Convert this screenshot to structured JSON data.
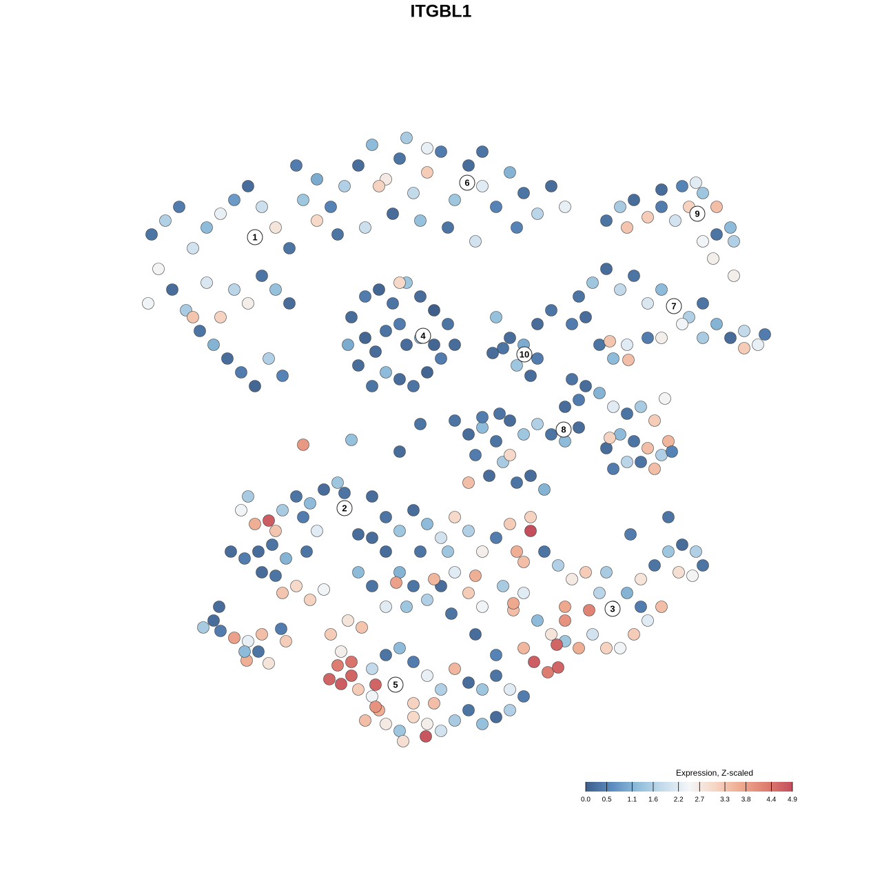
{
  "chart_data": {
    "type": "scatter",
    "title": "ITGBL1",
    "xlim": [
      0,
      1280
    ],
    "ylim": [
      1280,
      0
    ],
    "x": [
      220,
      240,
      260,
      280,
      300,
      320,
      340,
      360,
      380,
      400,
      420,
      440,
      460,
      230,
      250,
      270,
      290,
      310,
      330,
      350,
      370,
      320,
      340,
      360,
      380,
      400,
      420,
      300,
      280,
      215,
      390,
      410,
      480,
      500,
      520,
      540,
      560,
      580,
      600,
      620,
      640,
      660,
      680,
      700,
      720,
      740,
      760,
      780,
      800,
      820,
      460,
      490,
      530,
      570,
      610,
      650,
      690,
      550,
      430,
      590,
      620,
      700,
      750,
      510,
      530,
      550,
      570,
      590,
      610,
      630,
      650,
      660,
      640,
      620,
      600,
      580,
      560,
      540,
      520,
      505,
      530,
      560,
      590,
      610,
      580,
      545,
      630,
      580,
      880,
      900,
      920,
      940,
      960,
      980,
      1000,
      1020,
      1040,
      1060,
      1065,
      1040,
      1020,
      1010,
      990,
      960,
      910,
      1035,
      1065,
      840,
      860,
      880,
      900,
      920,
      940,
      960,
      980,
      1000,
      1020,
      1040,
      1060,
      1080,
      1100,
      1110,
      1080,
      990,
      1020,
      870,
      890,
      910,
      940,
      960,
      885,
      912,
      850,
      830,
      740,
      760,
      780,
      750,
      770,
      730,
      720,
      780,
      800,
      715,
      830,
      850,
      870,
      890,
      910,
      930,
      950,
      970,
      960,
      940,
      920,
      900,
      880,
      890,
      910,
      930,
      950,
      965,
      975,
      885,
      840,
      820,
      660,
      680,
      700,
      720,
      740,
      760,
      780,
      800,
      820,
      840,
      690,
      710,
      730,
      750,
      770,
      790,
      740,
      680,
      580,
      610,
      700,
      725,
      440,
      510,
      350,
      370,
      390,
      410,
      430,
      450,
      470,
      490,
      460,
      440,
      400,
      335,
      355,
      375,
      395,
      415,
      380,
      410,
      430,
      450,
      470,
      400,
      445,
      360,
      500,
      520,
      540,
      295,
      310,
      320,
      340,
      360,
      358,
      375,
      380,
      390,
      415,
      355,
      318,
      408,
      770,
      790,
      810,
      830,
      850,
      870,
      890,
      910,
      930,
      950,
      970,
      990,
      1010,
      1020,
      960,
      940,
      920,
      900,
      880,
      860,
      840,
      820,
      800,
      780,
      760,
      775,
      795,
      810,
      820,
      808,
      855,
      745,
      760,
      820,
      970,
      915,
      985,
      880,
      930,
      1005,
      480,
      495,
      490,
      478,
      495,
      510,
      520,
      540,
      550,
      530,
      545,
      560,
      580,
      600,
      620,
      618,
      640,
      660,
      680,
      700,
      720,
      740,
      760,
      540,
      560,
      580,
      600,
      620,
      640,
      660,
      680,
      700,
      720,
      740,
      630,
      600,
      585,
      545,
      510,
      525,
      505,
      720,
      690,
      560,
      580,
      600,
      620,
      640,
      660,
      680,
      700,
      720,
      740,
      750,
      560,
      580,
      600,
      620,
      640,
      660,
      680,
      700,
      730,
      520,
      540,
      560,
      575,
      630,
      690,
      760,
      590,
      655,
      745,
      770,
      540,
      610,
      650
    ],
    "y": [
      340,
      320,
      300,
      360,
      330,
      310,
      290,
      270,
      300,
      330,
      360,
      290,
      320,
      390,
      420,
      450,
      480,
      500,
      520,
      540,
      560,
      460,
      420,
      440,
      400,
      420,
      440,
      410,
      460,
      440,
      520,
      545,
      300,
      270,
      240,
      210,
      260,
      230,
      280,
      250,
      220,
      290,
      240,
      270,
      300,
      250,
      280,
      310,
      270,
      300,
      260,
      340,
      330,
      310,
      320,
      330,
      350,
      270,
      240,
      200,
      215,
      220,
      330,
      460,
      430,
      420,
      440,
      410,
      430,
      450,
      470,
      500,
      520,
      540,
      560,
      550,
      540,
      560,
      530,
      500,
      490,
      480,
      500,
      490,
      470,
      510,
      500,
      410,
      320,
      300,
      290,
      315,
      300,
      320,
      300,
      280,
      300,
      330,
      350,
      340,
      350,
      265,
      270,
      275,
      330,
      375,
      400,
      430,
      410,
      390,
      420,
      400,
      440,
      420,
      445,
      460,
      440,
      470,
      490,
      480,
      500,
      485,
      505,
      470,
      490,
      500,
      520,
      500,
      490,
      490,
      495,
      522,
      460,
      470,
      490,
      500,
      520,
      530,
      545,
      505,
      460,
      470,
      450,
      512,
      550,
      560,
      570,
      590,
      600,
      590,
      610,
      640,
      660,
      650,
      640,
      630,
      650,
      680,
      670,
      670,
      680,
      578,
      655,
      635,
      580,
      590,
      610,
      630,
      620,
      640,
      610,
      630,
      615,
      630,
      640,
      620,
      660,
      690,
      670,
      700,
      690,
      710,
      660,
      700,
      655,
      615,
      605,
      600,
      645,
      638,
      740,
      760,
      755,
      740,
      720,
      730,
      710,
      700,
      770,
      750,
      770,
      800,
      810,
      800,
      790,
      810,
      830,
      860,
      850,
      870,
      855,
      835,
      800,
      720,
      715,
      775,
      720,
      910,
      900,
      915,
      925,
      930,
      958,
      945,
      920,
      962,
      930,
      945,
      880,
      912,
      770,
      800,
      820,
      840,
      830,
      860,
      880,
      860,
      840,
      820,
      800,
      790,
      800,
      820,
      880,
      900,
      920,
      940,
      940,
      920,
      940,
      930,
      920,
      900,
      940,
      960,
      975,
      968,
      900,
      935,
      885,
      885,
      860,
      880,
      750,
      775,
      830,
      830,
      880,
      835,
      920,
      945,
      965,
      985,
      992,
      980,
      1000,
      1010,
      1030,
      1045,
      1025,
      1050,
      1060,
      1040,
      1050,
      1068,
      1060,
      1045,
      1030,
      1050,
      1040,
      1030,
      1010,
      970,
      950,
      940,
      960,
      980,
      1000,
      970,
      990,
      1000,
      980,
      1000,
      1020,
      1020,
      1075,
      993,
      960,
      910,
      900,
      950,
      920,
      750,
      770,
      740,
      760,
      780,
      750,
      770,
      800,
      780,
      760,
      800,
      800,
      830,
      850,
      870,
      850,
      830,
      860,
      880,
      850,
      830,
      850,
      880,
      845,
      840,
      835,
      815,
      880,
      890,
      875,
      750,
      780,
      800,
      800
    ],
    "values": [
      0.3,
      1.6,
      0.4,
      2.0,
      1.2,
      2.3,
      0.8,
      0.2,
      1.9,
      2.8,
      0.3,
      1.4,
      3.0,
      2.5,
      0.2,
      1.5,
      0.3,
      1.1,
      0.2,
      0.4,
      0.1,
      3.1,
      1.7,
      2.6,
      0.3,
      1.3,
      0.2,
      2.1,
      3.3,
      2.4,
      1.6,
      0.5,
      0.5,
      1.6,
      0.2,
      1.2,
      2.7,
      0.3,
      1.8,
      3.2,
      0.4,
      1.4,
      0.2,
      2.2,
      0.5,
      1.1,
      0.3,
      1.7,
      0.2,
      2.3,
      1.0,
      0.3,
      1.9,
      0.2,
      1.3,
      0.3,
      2.0,
      3.1,
      0.4,
      1.5,
      2.3,
      0.3,
      0.5,
      0.2,
      0.4,
      0.1,
      0.3,
      1.4,
      0.2,
      0.0,
      0.3,
      0.2,
      0.4,
      0.1,
      0.3,
      0.2,
      1.2,
      0.3,
      0.2,
      1.0,
      0.1,
      0.3,
      0.2,
      1.3,
      0.4,
      0.2,
      0.1,
      3.0,
      0.3,
      1.5,
      0.2,
      3.2,
      0.4,
      2.0,
      3.1,
      1.4,
      3.4,
      1.2,
      1.6,
      0.3,
      2.4,
      2.2,
      0.5,
      0.2,
      3.3,
      2.6,
      2.6,
      0.3,
      1.4,
      0.2,
      1.8,
      0.3,
      2.1,
      1.2,
      0.2,
      1.6,
      0.3,
      1.1,
      0.2,
      1.8,
      2.3,
      0.4,
      3.2,
      2.4,
      1.5,
      0.3,
      1.2,
      2.2,
      0.4,
      2.6,
      3.3,
      3.4,
      0.2,
      0.4,
      0.2,
      1.0,
      0.4,
      1.4,
      0.2,
      0.3,
      1.3,
      0.2,
      0.3,
      0.2,
      0.3,
      0.2,
      1.1,
      2.2,
      0.3,
      1.5,
      3.2,
      3.5,
      1.6,
      3.4,
      0.3,
      1.2,
      0.2,
      0.4,
      1.7,
      0.3,
      3.4,
      2.5,
      0.5,
      3.1,
      0.4,
      0.2,
      0.3,
      0.2,
      1.2,
      0.3,
      0.2,
      1.4,
      1.6,
      0.3,
      1.2,
      0.2,
      0.4,
      0.2,
      1.5,
      0.3,
      0.2,
      1.1,
      3.0,
      3.4,
      0.2,
      0.3,
      0.4,
      0.3,
      3.9,
      1.3,
      2.4,
      3.6,
      4.7,
      1.5,
      0.3,
      1.2,
      0.2,
      1.4,
      2.2,
      0.4,
      3.3,
      0.2,
      0.4,
      0.2,
      0.3,
      1.1,
      0.2,
      3.3,
      3.0,
      3.1,
      2.4,
      0.3,
      0.3,
      1.5,
      0.3,
      0.2,
      0.2,
      1.5,
      0.2,
      0.4,
      3.8,
      2.3,
      3.6,
      0.3,
      3.4,
      2.8,
      3.2,
      1.2,
      0.2,
      0.4,
      4.9,
      0.3,
      1.6,
      2.7,
      3.2,
      1.7,
      2.3,
      1.1,
      2.8,
      0.3,
      1.4,
      0.2,
      1.6,
      0.3,
      3.4,
      2.2,
      3.2,
      2.4,
      3.1,
      2.0,
      3.6,
      1.4,
      2.8,
      1.2,
      3.5,
      4.7,
      4.3,
      4.6,
      4.0,
      4.6,
      4.2,
      3.4,
      2.2,
      3.7,
      0.3,
      0.4,
      2.9,
      1.5,
      0.4,
      2.5,
      3.2,
      2.6,
      4.3,
      4.6,
      4.7,
      4.6,
      3.2,
      2.4,
      3.6,
      3.4,
      4.0,
      2.7,
      1.4,
      3.0,
      2.6,
      4.8,
      2.0,
      1.5,
      0.3,
      1.3,
      0.2,
      1.6,
      0.4,
      1.8,
      0.3,
      1.2,
      0.4,
      2.3,
      1.6,
      3.5,
      0.2,
      1.4,
      0.3,
      2.2,
      3.4,
      3.1,
      2.9,
      4.6,
      4.4,
      3.3,
      2.8,
      0.5,
      0.2,
      0.3,
      1.4,
      0.2,
      1.2,
      2.0,
      3.0,
      1.6,
      2.6,
      0.4,
      3.2,
      3.6,
      0.2,
      1.1,
      0.3,
      1.6,
      0.2,
      2.2,
      3.2,
      2.4,
      1.5,
      1.2,
      0.3,
      2.2,
      3.8,
      3.5,
      3.6,
      3.4,
      1.4,
      0.3,
      3.7,
      3.1,
      0.2,
      0.3,
      1.4
    ],
    "cluster_labels": {
      "labels": [
        "1",
        "2",
        "3",
        "4",
        "5",
        "6",
        "7",
        "8",
        "9",
        "10"
      ],
      "x": [
        370,
        500,
        889,
        614,
        574,
        678,
        978,
        818,
        1012,
        761
      ],
      "y": [
        344,
        737,
        883,
        487,
        993,
        265,
        444,
        623,
        310,
        514
      ]
    },
    "colorbar": {
      "title": "Expression, Z-scaled",
      "clim": [
        0,
        4.9
      ],
      "ticks": [
        {
          "value": 0,
          "label": "0.0"
        },
        0.5,
        1.1,
        1.6,
        2.2,
        2.7,
        3.3,
        3.8,
        4.4,
        4.9
      ],
      "colors": [
        "#3f5f8a",
        "#5b8bbf",
        "#8fbdda",
        "#c6dcec",
        "#f4f6f8",
        "#f6d6c4",
        "#eeaa8f",
        "#de7d70",
        "#c44e5c"
      ]
    }
  }
}
